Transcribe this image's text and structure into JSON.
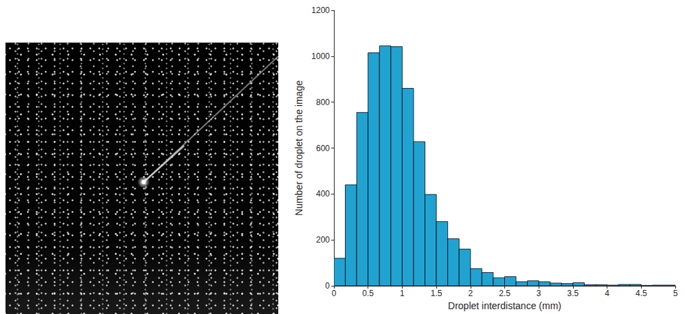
{
  "chart_data": {
    "type": "histogram",
    "xlabel": "Droplet interdistance (mm)",
    "ylabel": "Number of droplet on the image",
    "bins": [
      0,
      0.1667,
      0.3333,
      0.5,
      0.6667,
      0.8333,
      1,
      1.1667,
      1.3333,
      1.5,
      1.6667,
      1.8333,
      2,
      2.1667,
      2.3333,
      2.5,
      2.6667,
      2.8333,
      3,
      3.1667,
      3.3333,
      3.5,
      3.6667,
      3.8333,
      4,
      4.1667,
      4.3333,
      4.5,
      4.6667,
      4.8333,
      5
    ],
    "values": [
      120,
      440,
      755,
      1015,
      1045,
      1042,
      860,
      628,
      398,
      280,
      205,
      160,
      75,
      58,
      35,
      40,
      18,
      22,
      18,
      12,
      10,
      14,
      5,
      5,
      3,
      6,
      6,
      2,
      3,
      3
    ],
    "color": "#21a3d2",
    "xlim": [
      0,
      5
    ],
    "xticks": [
      0,
      0.5,
      1,
      1.5,
      2,
      2.5,
      3,
      3.5,
      4,
      4.5,
      5
    ],
    "ylim": [
      0,
      1200
    ],
    "yticks": [
      0,
      200,
      400,
      600,
      800,
      1000,
      1200
    ],
    "grid": false
  }
}
